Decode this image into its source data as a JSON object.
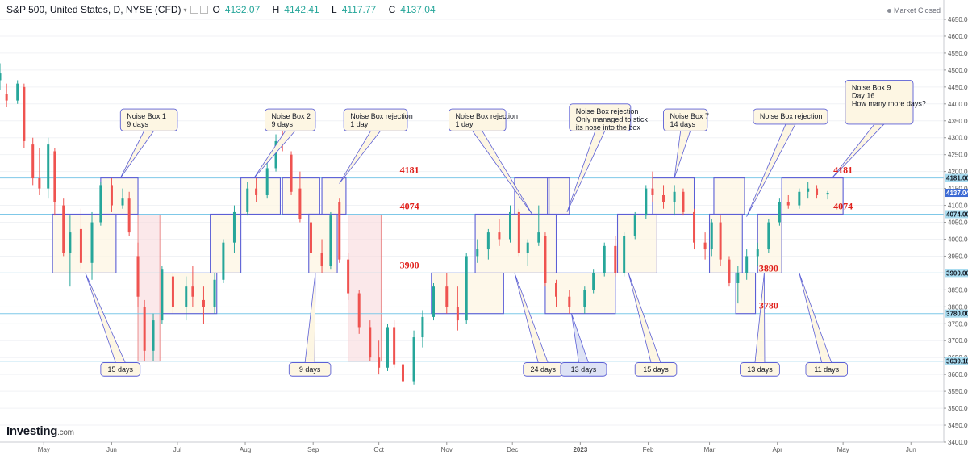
{
  "header": {
    "symbol": "S&P 500, United States, D, NYSE (CFD)",
    "open_label": "O",
    "open": "4132.07",
    "high_label": "H",
    "high": "4142.41",
    "low_label": "L",
    "low": "4117.77",
    "close_label": "C",
    "close": "4137.04",
    "market_status": "Market Closed"
  },
  "branding": {
    "logo": "Investing",
    "logo_suffix": ".com"
  },
  "chart_data": {
    "type": "candlestick",
    "title": "S&P 500, United States, D, NYSE (CFD)",
    "y_range": [
      3400,
      4650
    ],
    "y_ticks": [
      3400,
      3450,
      3500,
      3550,
      3600,
      3650,
      3700,
      3750,
      3800,
      3850,
      3900,
      3950,
      4000,
      4050,
      4100,
      4150,
      4200,
      4250,
      4300,
      4350,
      4400,
      4450,
      4500,
      4550,
      4600,
      4650
    ],
    "x_ticks": [
      {
        "label": "May",
        "date": "2022-05-01"
      },
      {
        "label": "Jun",
        "date": "2022-06-01"
      },
      {
        "label": "Jul",
        "date": "2022-07-01"
      },
      {
        "label": "Aug",
        "date": "2022-08-01"
      },
      {
        "label": "Sep",
        "date": "2022-09-01"
      },
      {
        "label": "Oct",
        "date": "2022-10-01"
      },
      {
        "label": "Nov",
        "date": "2022-11-01"
      },
      {
        "label": "Dec",
        "date": "2022-12-01"
      },
      {
        "label": "2023",
        "date": "2023-01-01"
      },
      {
        "label": "Feb",
        "date": "2023-02-01"
      },
      {
        "label": "Mar",
        "date": "2023-03-01"
      },
      {
        "label": "Apr",
        "date": "2023-04-01"
      },
      {
        "label": "May",
        "date": "2023-05-01"
      },
      {
        "label": "Jun",
        "date": "2023-06-01"
      }
    ],
    "x_range": [
      "2022-04-11",
      "2023-06-16"
    ],
    "colors": {
      "up": "#26a69a",
      "down": "#ef5350",
      "box": "#5b5fd6",
      "box_fill": "#fdf6e3",
      "level_line": "#7fc8e8",
      "red_zone": "#f8d9dc",
      "level_text": "#e0201b"
    },
    "horizontal_levels": [
      {
        "value": 4181,
        "axis_label": "4181.00"
      },
      {
        "value": 4074,
        "axis_label": "4074.00"
      },
      {
        "value": 3900,
        "axis_label": "3900.00"
      },
      {
        "value": 3780,
        "axis_label": "3780.00"
      },
      {
        "value": 3639.18,
        "axis_label": "3639.18"
      }
    ],
    "last_price": {
      "value": 4137.04,
      "axis_label": "4137.04"
    },
    "level_labels": [
      {
        "text": "4181",
        "date": "2022-10-15",
        "value": 4181
      },
      {
        "text": "4074",
        "date": "2022-10-15",
        "value": 4074
      },
      {
        "text": "3900",
        "date": "2022-10-15",
        "value": 3900
      },
      {
        "text": "4181",
        "date": "2023-05-01",
        "value": 4181
      },
      {
        "text": "4074",
        "date": "2023-05-01",
        "value": 4074
      },
      {
        "text": "3890",
        "date": "2023-03-28",
        "value": 3890
      },
      {
        "text": "3780",
        "date": "2023-03-28",
        "value": 3780
      }
    ],
    "boxes": [
      {
        "x0": "2022-05-05",
        "x1": "2022-06-03",
        "y0": 3900,
        "y1": 4074
      },
      {
        "x0": "2022-05-27",
        "x1": "2022-06-13",
        "y0": 4074,
        "y1": 4181
      },
      {
        "x0": "2022-06-24",
        "x1": "2022-07-19",
        "y0": 3780,
        "y1": 3900
      },
      {
        "x0": "2022-07-16",
        "x1": "2022-07-30",
        "y0": 3900,
        "y1": 4074
      },
      {
        "x0": "2022-07-30",
        "x1": "2022-08-17",
        "y0": 4074,
        "y1": 4181
      },
      {
        "x0": "2022-08-18",
        "x1": "2022-09-04",
        "y0": 4074,
        "y1": 4181
      },
      {
        "x0": "2022-08-30",
        "x1": "2022-09-12",
        "y0": 3900,
        "y1": 4074
      },
      {
        "x0": "2022-09-05",
        "x1": "2022-09-16",
        "y0": 4074,
        "y1": 4181
      },
      {
        "x0": "2022-10-25",
        "x1": "2022-11-27",
        "y0": 3780,
        "y1": 3900
      },
      {
        "x0": "2022-11-14",
        "x1": "2022-12-21",
        "y0": 3900,
        "y1": 4074
      },
      {
        "x0": "2022-12-02",
        "x1": "2022-12-18",
        "y0": 4074,
        "y1": 4181
      },
      {
        "x0": "2022-12-17",
        "x1": "2022-12-27",
        "y0": 4074,
        "y1": 4181
      },
      {
        "x0": "2022-12-16",
        "x1": "2023-01-17",
        "y0": 3780,
        "y1": 3900
      },
      {
        "x0": "2023-01-18",
        "x1": "2023-02-05",
        "y0": 3900,
        "y1": 4074
      },
      {
        "x0": "2023-02-03",
        "x1": "2023-02-22",
        "y0": 4074,
        "y1": 4181
      },
      {
        "x0": "2023-03-01",
        "x1": "2023-03-16",
        "y0": 3900,
        "y1": 4074
      },
      {
        "x0": "2023-03-03",
        "x1": "2023-03-17",
        "y0": 4074,
        "y1": 4181
      },
      {
        "x0": "2023-03-13",
        "x1": "2023-03-22",
        "y0": 3780,
        "y1": 3900
      },
      {
        "x0": "2023-03-23",
        "x1": "2023-04-03",
        "y0": 3900,
        "y1": 4074
      },
      {
        "x0": "2023-04-03",
        "x1": "2023-05-01",
        "y0": 4074,
        "y1": 4181
      }
    ],
    "red_zones": [
      {
        "x0": "2022-06-13",
        "x1": "2022-06-23",
        "y0": 3639,
        "y1": 4074
      },
      {
        "x0": "2022-09-17",
        "x1": "2022-10-02",
        "y0": 3639,
        "y1": 4074
      }
    ],
    "callouts": [
      {
        "lines": [
          "Noise Box 1",
          "9 days"
        ],
        "bx0": "2022-06-05",
        "bx1": "2022-07-01",
        "by0": 4385,
        "by1": 4320,
        "ax": "2022-06-05",
        "ay": 4181
      },
      {
        "lines": [
          "Noise Box 2",
          "9 days"
        ],
        "bx0": "2022-08-10",
        "bx1": "2022-09-02",
        "by0": 4385,
        "by1": 4320,
        "ax": "2022-08-05",
        "ay": 4181
      },
      {
        "lines": [
          "Noise Box rejection",
          "1 day"
        ],
        "bx0": "2022-09-15",
        "bx1": "2022-10-14",
        "by0": 4385,
        "by1": 4320,
        "ax": "2022-09-13",
        "ay": 4165
      },
      {
        "lines": [
          "Noise Box rejection",
          "1 day"
        ],
        "bx0": "2022-11-02",
        "bx1": "2022-11-28",
        "by0": 4385,
        "by1": 4320,
        "ax": "2022-12-10",
        "ay": 4074
      },
      {
        "lines": [
          "Noise Box rejection",
          "Only managed to stick",
          "its nose into the box"
        ],
        "bx0": "2022-12-27",
        "bx1": "2023-01-24",
        "by0": 4400,
        "by1": 4320,
        "ax": "2022-12-26",
        "ay": 4081
      },
      {
        "lines": [
          "Noise Box 7",
          "14 days"
        ],
        "bx0": "2023-02-08",
        "bx1": "2023-02-28",
        "by0": 4385,
        "by1": 4320,
        "ax": "2023-02-13",
        "ay": 4181
      },
      {
        "lines": [
          "Noise Box rejection"
        ],
        "bx0": "2023-03-21",
        "bx1": "2023-04-24",
        "by0": 4385,
        "by1": 4340,
        "ax": "2023-03-18",
        "ay": 4067
      },
      {
        "lines": [
          "Noise Box 9",
          "Day 16",
          "",
          "How many more days?"
        ],
        "bx0": "2023-05-02",
        "bx1": "2023-06-02",
        "by0": 4470,
        "by1": 4340,
        "ax": "2023-04-26",
        "ay": 4181
      }
    ],
    "day_labels": [
      {
        "text": "15 days",
        "bx0": "2022-05-27",
        "bx1": "2022-06-14",
        "by0": 3635,
        "by1": 3595,
        "ax": "2022-05-20",
        "ay": 3900,
        "fill": "#fdf6e3"
      },
      {
        "text": "9 days",
        "bx0": "2022-08-21",
        "bx1": "2022-09-09",
        "by0": 3635,
        "by1": 3595,
        "ax": "2022-09-02",
        "ay": 3900,
        "fill": "#fdf6e3"
      },
      {
        "text": "24 days",
        "bx0": "2022-12-06",
        "bx1": "2022-12-24",
        "by0": 3635,
        "by1": 3595,
        "ax": "2022-12-02",
        "ay": 3900,
        "fill": "#fdf6e3"
      },
      {
        "text": "13 days",
        "bx0": "2022-12-23",
        "bx1": "2023-01-13",
        "by0": 3635,
        "by1": 3595,
        "ax": "2022-12-28",
        "ay": 3780,
        "fill": "#dde2f5"
      },
      {
        "text": "15 days",
        "bx0": "2023-01-26",
        "bx1": "2023-02-14",
        "by0": 3635,
        "by1": 3595,
        "ax": "2023-01-23",
        "ay": 3900,
        "fill": "#fdf6e3"
      },
      {
        "text": "13 days",
        "bx0": "2023-03-15",
        "bx1": "2023-04-02",
        "by0": 3635,
        "by1": 3595,
        "ax": "2023-03-26",
        "ay": 3900,
        "fill": "#fdf6e3"
      },
      {
        "text": "11 days",
        "bx0": "2023-04-14",
        "bx1": "2023-05-03",
        "by0": 3635,
        "by1": 3595,
        "ax": "2023-04-11",
        "ay": 3900,
        "fill": "#fdf6e3"
      }
    ],
    "candles": [
      {
        "d": "2022-04-11",
        "o": 4470,
        "h": 4520,
        "l": 4440,
        "c": 4490
      },
      {
        "d": "2022-04-14",
        "o": 4430,
        "h": 4460,
        "l": 4390,
        "c": 4410
      },
      {
        "d": "2022-04-19",
        "o": 4410,
        "h": 4470,
        "l": 4400,
        "c": 4460
      },
      {
        "d": "2022-04-22",
        "o": 4450,
        "h": 4460,
        "l": 4270,
        "c": 4290
      },
      {
        "d": "2022-04-26",
        "o": 4280,
        "h": 4300,
        "l": 4160,
        "c": 4180
      },
      {
        "d": "2022-04-29",
        "o": 4180,
        "h": 4270,
        "l": 4130,
        "c": 4150
      },
      {
        "d": "2022-05-03",
        "o": 4150,
        "h": 4300,
        "l": 4120,
        "c": 4280
      },
      {
        "d": "2022-05-06",
        "o": 4260,
        "h": 4270,
        "l": 4070,
        "c": 4110
      },
      {
        "d": "2022-05-10",
        "o": 4100,
        "h": 4120,
        "l": 3950,
        "c": 3960
      },
      {
        "d": "2022-05-13",
        "o": 3960,
        "h": 4070,
        "l": 3860,
        "c": 4020
      },
      {
        "d": "2022-05-18",
        "o": 4030,
        "h": 4090,
        "l": 3910,
        "c": 3930
      },
      {
        "d": "2022-05-23",
        "o": 3930,
        "h": 4080,
        "l": 3880,
        "c": 4050
      },
      {
        "d": "2022-05-27",
        "o": 4050,
        "h": 4170,
        "l": 4040,
        "c": 4160
      },
      {
        "d": "2022-06-01",
        "o": 4160,
        "h": 4180,
        "l": 4080,
        "c": 4100
      },
      {
        "d": "2022-06-06",
        "o": 4100,
        "h": 4150,
        "l": 4090,
        "c": 4120
      },
      {
        "d": "2022-06-09",
        "o": 4120,
        "h": 4140,
        "l": 4010,
        "c": 4020
      },
      {
        "d": "2022-06-13",
        "o": 3950,
        "h": 3990,
        "l": 3800,
        "c": 3830
      },
      {
        "d": "2022-06-16",
        "o": 3800,
        "h": 3820,
        "l": 3640,
        "c": 3670
      },
      {
        "d": "2022-06-20",
        "o": 3670,
        "h": 3780,
        "l": 3640,
        "c": 3760
      },
      {
        "d": "2022-06-24",
        "o": 3760,
        "h": 3920,
        "l": 3750,
        "c": 3910
      },
      {
        "d": "2022-06-29",
        "o": 3890,
        "h": 3900,
        "l": 3780,
        "c": 3800
      },
      {
        "d": "2022-07-05",
        "o": 3800,
        "h": 3890,
        "l": 3760,
        "c": 3860
      },
      {
        "d": "2022-07-08",
        "o": 3860,
        "h": 3920,
        "l": 3800,
        "c": 3830
      },
      {
        "d": "2022-07-13",
        "o": 3820,
        "h": 3860,
        "l": 3750,
        "c": 3800
      },
      {
        "d": "2022-07-18",
        "o": 3800,
        "h": 3900,
        "l": 3780,
        "c": 3880
      },
      {
        "d": "2022-07-22",
        "o": 3880,
        "h": 4000,
        "l": 3870,
        "c": 3990
      },
      {
        "d": "2022-07-27",
        "o": 3990,
        "h": 4100,
        "l": 3960,
        "c": 4080
      },
      {
        "d": "2022-08-02",
        "o": 4080,
        "h": 4170,
        "l": 4070,
        "c": 4150
      },
      {
        "d": "2022-08-06",
        "o": 4150,
        "h": 4180,
        "l": 4110,
        "c": 4130
      },
      {
        "d": "2022-08-11",
        "o": 4130,
        "h": 4230,
        "l": 4120,
        "c": 4210
      },
      {
        "d": "2022-08-15",
        "o": 4210,
        "h": 4310,
        "l": 4200,
        "c": 4290
      },
      {
        "d": "2022-08-18",
        "o": 4290,
        "h": 4330,
        "l": 4260,
        "c": 4280
      },
      {
        "d": "2022-08-22",
        "o": 4250,
        "h": 4260,
        "l": 4130,
        "c": 4140
      },
      {
        "d": "2022-08-26",
        "o": 4150,
        "h": 4200,
        "l": 4050,
        "c": 4060
      },
      {
        "d": "2022-08-31",
        "o": 4050,
        "h": 4070,
        "l": 3940,
        "c": 3960
      },
      {
        "d": "2022-09-05",
        "o": 3960,
        "h": 4000,
        "l": 3900,
        "c": 3920
      },
      {
        "d": "2022-09-09",
        "o": 3920,
        "h": 4080,
        "l": 3910,
        "c": 4070
      },
      {
        "d": "2022-09-13",
        "o": 4110,
        "h": 4120,
        "l": 3930,
        "c": 3940
      },
      {
        "d": "2022-09-17",
        "o": 3940,
        "h": 3960,
        "l": 3820,
        "c": 3840
      },
      {
        "d": "2022-09-22",
        "o": 3840,
        "h": 3850,
        "l": 3720,
        "c": 3740
      },
      {
        "d": "2022-09-27",
        "o": 3740,
        "h": 3760,
        "l": 3640,
        "c": 3650
      },
      {
        "d": "2022-10-01",
        "o": 3650,
        "h": 3700,
        "l": 3600,
        "c": 3620
      },
      {
        "d": "2022-10-05",
        "o": 3620,
        "h": 3750,
        "l": 3610,
        "c": 3740
      },
      {
        "d": "2022-10-08",
        "o": 3740,
        "h": 3760,
        "l": 3620,
        "c": 3630
      },
      {
        "d": "2022-10-12",
        "o": 3630,
        "h": 3680,
        "l": 3490,
        "c": 3580
      },
      {
        "d": "2022-10-17",
        "o": 3580,
        "h": 3730,
        "l": 3570,
        "c": 3710
      },
      {
        "d": "2022-10-21",
        "o": 3710,
        "h": 3790,
        "l": 3680,
        "c": 3770
      },
      {
        "d": "2022-10-26",
        "o": 3770,
        "h": 3870,
        "l": 3760,
        "c": 3860
      },
      {
        "d": "2022-11-01",
        "o": 3860,
        "h": 3900,
        "l": 3780,
        "c": 3800
      },
      {
        "d": "2022-11-06",
        "o": 3800,
        "h": 3860,
        "l": 3730,
        "c": 3760
      },
      {
        "d": "2022-11-10",
        "o": 3760,
        "h": 3960,
        "l": 3750,
        "c": 3950
      },
      {
        "d": "2022-11-15",
        "o": 3950,
        "h": 4000,
        "l": 3930,
        "c": 3970
      },
      {
        "d": "2022-11-20",
        "o": 3970,
        "h": 4030,
        "l": 3940,
        "c": 4020
      },
      {
        "d": "2022-11-25",
        "o": 4020,
        "h": 4060,
        "l": 3980,
        "c": 4000
      },
      {
        "d": "2022-11-30",
        "o": 4000,
        "h": 4100,
        "l": 3990,
        "c": 4080
      },
      {
        "d": "2022-12-04",
        "o": 4080,
        "h": 4090,
        "l": 3950,
        "c": 3960
      },
      {
        "d": "2022-12-08",
        "o": 3960,
        "h": 4000,
        "l": 3920,
        "c": 3990
      },
      {
        "d": "2022-12-13",
        "o": 3990,
        "h": 4100,
        "l": 3980,
        "c": 4020
      },
      {
        "d": "2022-12-16",
        "o": 4010,
        "h": 4020,
        "l": 3860,
        "c": 3870
      },
      {
        "d": "2022-12-21",
        "o": 3870,
        "h": 3880,
        "l": 3800,
        "c": 3830
      },
      {
        "d": "2022-12-27",
        "o": 3830,
        "h": 3850,
        "l": 3780,
        "c": 3800
      },
      {
        "d": "2023-01-03",
        "o": 3800,
        "h": 3860,
        "l": 3780,
        "c": 3850
      },
      {
        "d": "2023-01-07",
        "o": 3850,
        "h": 3910,
        "l": 3840,
        "c": 3900
      },
      {
        "d": "2023-01-12",
        "o": 3900,
        "h": 3990,
        "l": 3890,
        "c": 3980
      },
      {
        "d": "2023-01-17",
        "o": 3980,
        "h": 4010,
        "l": 3890,
        "c": 3900
      },
      {
        "d": "2023-01-21",
        "o": 3900,
        "h": 4020,
        "l": 3890,
        "c": 4010
      },
      {
        "d": "2023-01-26",
        "o": 4010,
        "h": 4080,
        "l": 4000,
        "c": 4070
      },
      {
        "d": "2023-01-31",
        "o": 4070,
        "h": 4160,
        "l": 4060,
        "c": 4150
      },
      {
        "d": "2023-02-03",
        "o": 4150,
        "h": 4200,
        "l": 4110,
        "c": 4130
      },
      {
        "d": "2023-02-08",
        "o": 4130,
        "h": 4160,
        "l": 4090,
        "c": 4110
      },
      {
        "d": "2023-02-13",
        "o": 4110,
        "h": 4160,
        "l": 4070,
        "c": 4140
      },
      {
        "d": "2023-02-17",
        "o": 4140,
        "h": 4150,
        "l": 4070,
        "c": 4080
      },
      {
        "d": "2023-02-22",
        "o": 4080,
        "h": 4090,
        "l": 3970,
        "c": 3990
      },
      {
        "d": "2023-02-27",
        "o": 3990,
        "h": 4020,
        "l": 3940,
        "c": 3970
      },
      {
        "d": "2023-03-02",
        "o": 3970,
        "h": 4060,
        "l": 3950,
        "c": 4050
      },
      {
        "d": "2023-03-06",
        "o": 4050,
        "h": 4070,
        "l": 3920,
        "c": 3940
      },
      {
        "d": "2023-03-10",
        "o": 3940,
        "h": 3950,
        "l": 3860,
        "c": 3870
      },
      {
        "d": "2023-03-14",
        "o": 3870,
        "h": 3920,
        "l": 3810,
        "c": 3900
      },
      {
        "d": "2023-03-18",
        "o": 3900,
        "h": 3970,
        "l": 3880,
        "c": 3950
      },
      {
        "d": "2023-03-23",
        "o": 3950,
        "h": 3990,
        "l": 3920,
        "c": 3970
      },
      {
        "d": "2023-03-28",
        "o": 3970,
        "h": 4060,
        "l": 3960,
        "c": 4050
      },
      {
        "d": "2023-04-02",
        "o": 4050,
        "h": 4120,
        "l": 4040,
        "c": 4110
      },
      {
        "d": "2023-04-06",
        "o": 4110,
        "h": 4130,
        "l": 4090,
        "c": 4100
      },
      {
        "d": "2023-04-11",
        "o": 4100,
        "h": 4150,
        "l": 4090,
        "c": 4140
      },
      {
        "d": "2023-04-15",
        "o": 4140,
        "h": 4170,
        "l": 4120,
        "c": 4150
      },
      {
        "d": "2023-04-19",
        "o": 4150,
        "h": 4160,
        "l": 4120,
        "c": 4130
      },
      {
        "d": "2023-04-24",
        "o": 4132.07,
        "h": 4142.41,
        "l": 4117.77,
        "c": 4137.04
      }
    ]
  }
}
